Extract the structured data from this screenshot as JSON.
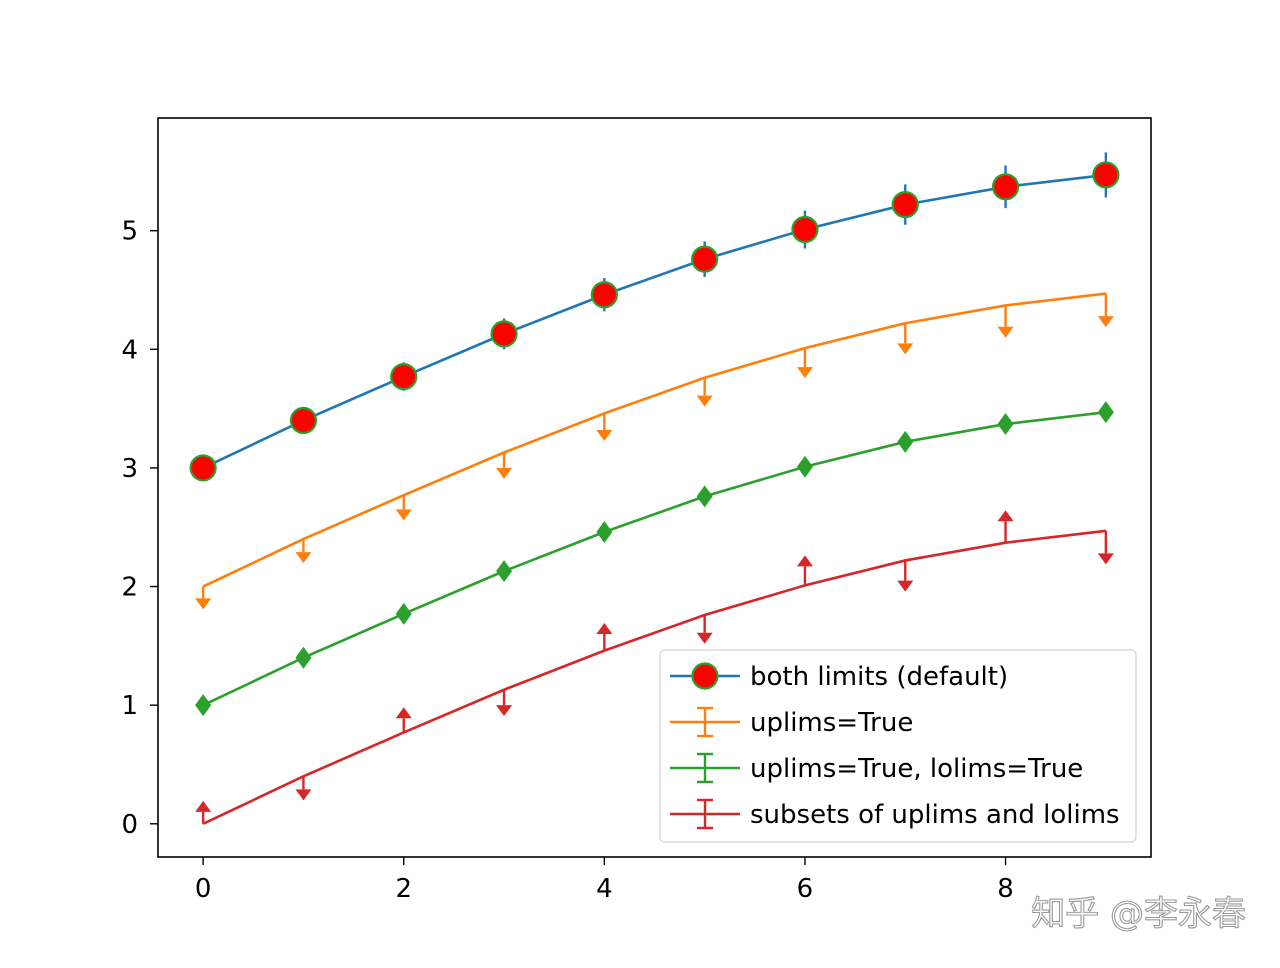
{
  "chart_data": {
    "type": "line",
    "title": "",
    "xlabel": "",
    "ylabel": "",
    "xlim": [
      -0.45,
      9.45
    ],
    "ylim": [
      -0.28,
      5.95
    ],
    "xticks": [
      0,
      2,
      4,
      6,
      8
    ],
    "yticks": [
      0,
      1,
      2,
      3,
      4,
      5
    ],
    "grid": false,
    "legend_position": "lower right",
    "x": [
      0,
      1,
      2,
      3,
      4,
      5,
      6,
      7,
      8,
      9
    ],
    "series": [
      {
        "name": "both limits (default)",
        "color": "#1f77b4",
        "marker": "circle",
        "marker_face": "#ff0000",
        "marker_edge": "#2ca02c",
        "values": [
          3.0,
          3.4,
          3.77,
          4.13,
          4.46,
          4.76,
          5.01,
          5.22,
          5.37,
          5.47
        ],
        "yerr": [
          0.1,
          0.11,
          0.12,
          0.13,
          0.14,
          0.15,
          0.16,
          0.17,
          0.18,
          0.19
        ],
        "limits": "both"
      },
      {
        "name": "uplims=True",
        "color": "#ff7f0e",
        "values": [
          2.0,
          2.4,
          2.77,
          3.13,
          3.46,
          3.76,
          4.01,
          4.22,
          4.37,
          4.47
        ],
        "yerr": [
          0.1,
          0.11,
          0.12,
          0.13,
          0.14,
          0.15,
          0.16,
          0.17,
          0.18,
          0.19
        ],
        "limits": "upper"
      },
      {
        "name": "uplims=True, lolims=True",
        "color": "#2ca02c",
        "marker": "diamond",
        "values": [
          1.0,
          1.4,
          1.77,
          2.13,
          2.46,
          2.76,
          3.01,
          3.22,
          3.37,
          3.47
        ],
        "limits": "both-arrows"
      },
      {
        "name": "subsets of uplims and lolims",
        "color": "#d62728",
        "values": [
          0.0,
          0.4,
          0.77,
          1.13,
          1.46,
          1.76,
          2.01,
          2.22,
          2.37,
          2.47
        ],
        "yerr": [
          0.1,
          0.11,
          0.12,
          0.13,
          0.14,
          0.15,
          0.16,
          0.17,
          0.18,
          0.19
        ],
        "arrow_directions": [
          "up",
          "down",
          "up",
          "down",
          "up",
          "down",
          "up",
          "down",
          "up",
          "down"
        ]
      }
    ]
  },
  "watermark": "知乎 @李永春"
}
